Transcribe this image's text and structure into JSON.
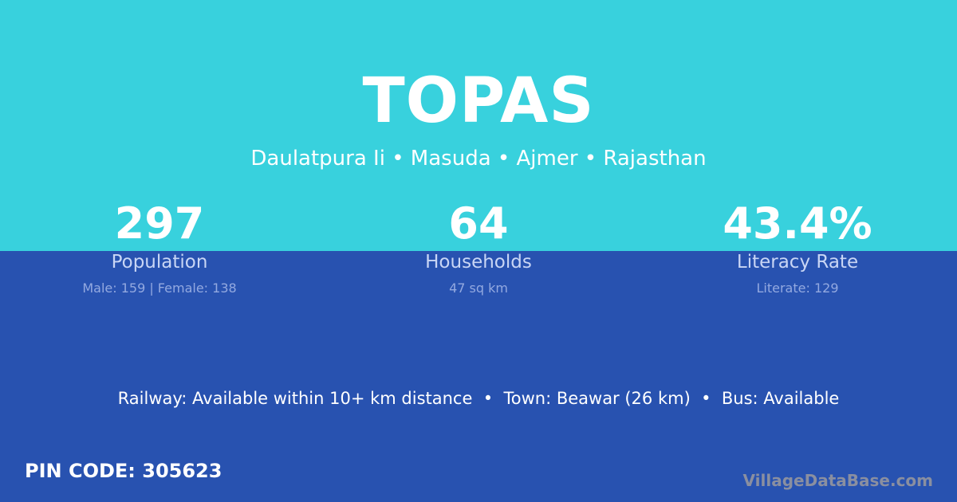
{
  "title": "TOPAS",
  "location": "Daulatpura Ii • Masuda • Ajmer • Rajasthan",
  "stats": [
    {
      "value": "297",
      "label": "Population",
      "detail": "Male: 159 | Female: 138"
    },
    {
      "value": "64",
      "label": "Households",
      "detail": "47 sq km"
    },
    {
      "value": "43.4%",
      "label": "Literacy Rate",
      "detail": "Literate: 129"
    }
  ],
  "info": "Railway: Available within 10+ km distance  •  Town: Beawar (26 km)  •  Bus: Available",
  "pin": "PIN CODE: 305623",
  "brand": "VillageDataBase.com",
  "colors": {
    "top": "#38d1dd",
    "bottom": "#2852b0"
  }
}
